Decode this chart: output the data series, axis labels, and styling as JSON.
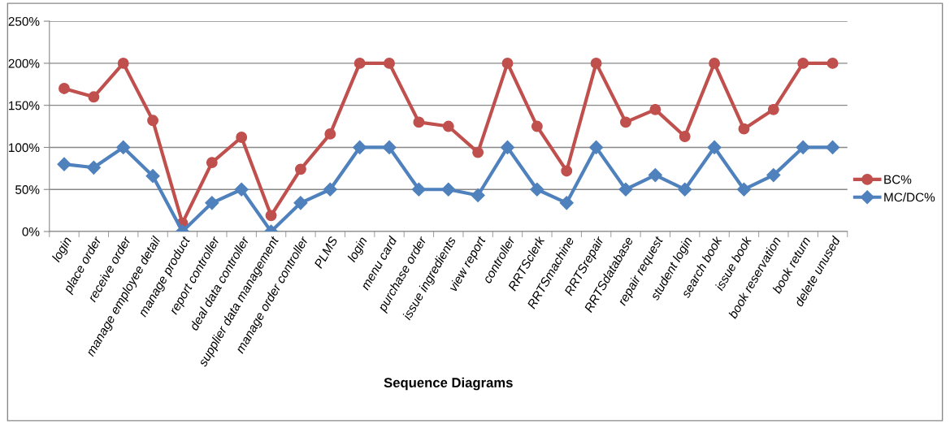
{
  "chart_data": {
    "type": "line",
    "xlabel": "Sequence Diagrams",
    "categories": [
      "login",
      "place order",
      "receive order",
      "manage employee detail",
      "manage product",
      "report controller",
      "deal data controller",
      "supplier data management",
      "manage order controller",
      "PLMS",
      "login",
      "menu card",
      "purchase order",
      "issue ingredients",
      "view report",
      "controller",
      "RRTSclerk",
      "RRTSmachine",
      "RRTSrepair",
      "RRTSdatabase",
      "repair request",
      "student login",
      "search book",
      "issue book",
      "book reservation",
      "book return",
      "delete unused"
    ],
    "series": [
      {
        "name": "BC%",
        "color": "#c0504d",
        "marker": "circle",
        "values": [
          170,
          160,
          200,
          132,
          10,
          82,
          112,
          19,
          74,
          116,
          200,
          200,
          130,
          125,
          94,
          200,
          125,
          72,
          200,
          130,
          145,
          113,
          200,
          122,
          145,
          200,
          200
        ]
      },
      {
        "name": "MC/DC%",
        "color": "#4f81bd",
        "marker": "diamond",
        "values": [
          80,
          76,
          100,
          66,
          0,
          34,
          50,
          0,
          34,
          50,
          100,
          100,
          50,
          50,
          43,
          100,
          50,
          34,
          100,
          50,
          67,
          50,
          100,
          50,
          67,
          100,
          100
        ]
      }
    ],
    "ylim": [
      0,
      250
    ],
    "yticks": [
      {
        "value": 0,
        "label": "0%"
      },
      {
        "value": 50,
        "label": "50%"
      },
      {
        "value": 100,
        "label": "100%"
      },
      {
        "value": 150,
        "label": "150%"
      },
      {
        "value": 200,
        "label": "200%"
      },
      {
        "value": 250,
        "label": "250%"
      }
    ],
    "grid": "y",
    "legend": "right",
    "line_style": "solid"
  }
}
